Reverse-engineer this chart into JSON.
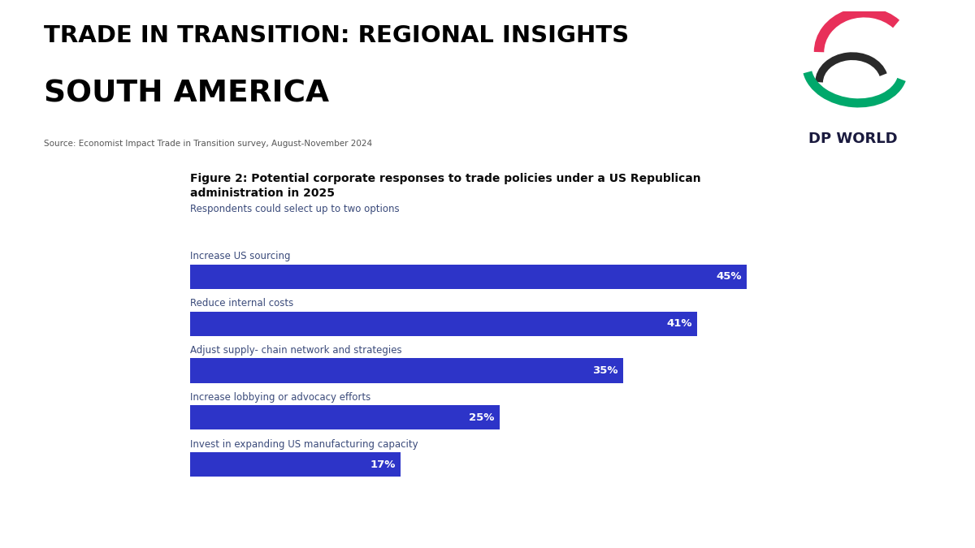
{
  "main_title_line1": "TRADE IN TRANSITION: REGIONAL INSIGHTS",
  "main_title_line2": "SOUTH AMERICA",
  "source_text": "Source: Economist Impact Trade in Transition survey, August-November 2024",
  "figure_title_line1": "Figure 2: Potential corporate responses to trade policies under a US Republican",
  "figure_title_line2": "administration in 2025",
  "subtitle": "Respondents could select up to two options",
  "categories": [
    "Increase US sourcing",
    "Reduce internal costs",
    "Adjust supply- chain network and strategies",
    "Increase lobbying or advocacy efforts",
    "Invest in expanding US manufacturing capacity"
  ],
  "values": [
    45,
    41,
    35,
    25,
    17
  ],
  "bar_color": "#2d34c8",
  "label_color": "#ffffff",
  "bg_color": "#ffffff",
  "footer_color": "#1e1f9c",
  "title_color": "#000000",
  "figure_title_color": "#0a0a0a",
  "category_color": "#3a4a7a",
  "source_color": "#555555",
  "dp_world_text_color": "#1a1a3e"
}
